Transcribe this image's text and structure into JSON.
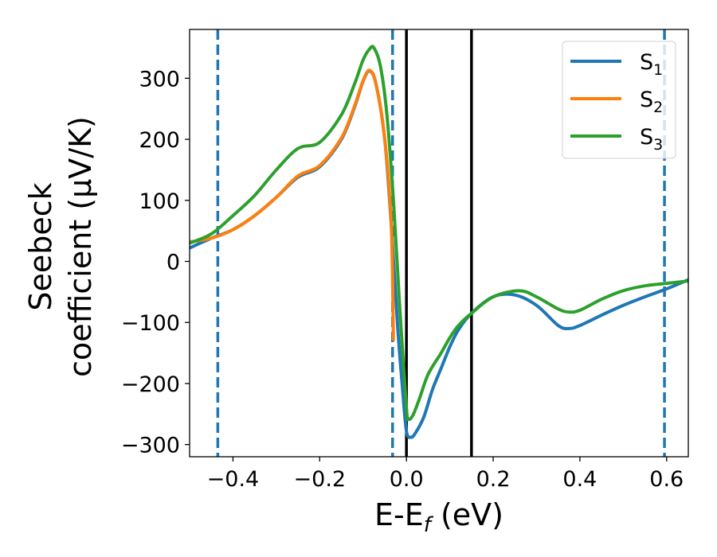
{
  "chart_data": {
    "type": "line",
    "xlabel": "E-E",
    "xlabel_sub": "f",
    "xlabel_unit": " (eV)",
    "ylabel_line1": "Seebeck",
    "ylabel_line2": "coefficient  (μV/K)",
    "xlim": [
      -0.5,
      0.65
    ],
    "ylim": [
      -320,
      380
    ],
    "grid": false,
    "legend_position": "top-right",
    "x_ticks": [
      {
        "value": -0.4,
        "label": "−0.4"
      },
      {
        "value": -0.2,
        "label": "−0.2"
      },
      {
        "value": 0.0,
        "label": "0.0"
      },
      {
        "value": 0.2,
        "label": "0.2"
      },
      {
        "value": 0.4,
        "label": "0.4"
      },
      {
        "value": 0.6,
        "label": "0.6"
      }
    ],
    "y_ticks": [
      {
        "value": 300,
        "label": "300"
      },
      {
        "value": 200,
        "label": "200"
      },
      {
        "value": 100,
        "label": "100"
      },
      {
        "value": 0,
        "label": "0"
      },
      {
        "value": -100,
        "label": "−100"
      },
      {
        "value": -200,
        "label": "−200"
      },
      {
        "value": -300,
        "label": "−300"
      }
    ],
    "vlines": [
      {
        "x": -0.435,
        "style": "dashed",
        "color": "#1f77b4"
      },
      {
        "x": -0.032,
        "style": "dashed",
        "color": "#1f77b4"
      },
      {
        "x": 0.595,
        "style": "dashed",
        "color": "#1f77b4"
      },
      {
        "x": 0.0,
        "style": "solid",
        "color": "#000000"
      },
      {
        "x": 0.15,
        "style": "solid",
        "color": "#000000"
      }
    ],
    "series": [
      {
        "name": "S",
        "sub": "1",
        "color": "#1f77b4",
        "x": [
          -0.5,
          -0.45,
          -0.4,
          -0.35,
          -0.3,
          -0.25,
          -0.2,
          -0.15,
          -0.12,
          -0.1,
          -0.085,
          -0.07,
          -0.05,
          -0.035,
          -0.02,
          -0.01,
          0.0,
          0.01,
          0.02,
          0.04,
          0.06,
          0.08,
          0.1,
          0.12,
          0.15,
          0.2,
          0.25,
          0.3,
          0.35,
          0.375,
          0.4,
          0.45,
          0.5,
          0.55,
          0.6,
          0.65
        ],
        "y": [
          22,
          38,
          52,
          75,
          105,
          138,
          155,
          200,
          252,
          295,
          312,
          290,
          200,
          60,
          -110,
          -200,
          -278,
          -288,
          -282,
          -255,
          -210,
          -175,
          -140,
          -112,
          -85,
          -58,
          -55,
          -72,
          -105,
          -110,
          -105,
          -88,
          -72,
          -58,
          -45,
          -30
        ]
      },
      {
        "name": "S",
        "sub": "2",
        "color": "#ff7f0e",
        "x": [
          -0.5,
          -0.45,
          -0.4,
          -0.35,
          -0.3,
          -0.25,
          -0.2,
          -0.15,
          -0.12,
          -0.1,
          -0.085,
          -0.07,
          -0.05,
          -0.035,
          -0.03
        ],
        "y": [
          32,
          38,
          52,
          75,
          105,
          140,
          157,
          202,
          254,
          296,
          313,
          290,
          200,
          60,
          -130
        ]
      },
      {
        "name": "S",
        "sub": "3",
        "color": "#2ca02c",
        "x": [
          -0.5,
          -0.45,
          -0.4,
          -0.35,
          -0.3,
          -0.25,
          -0.2,
          -0.15,
          -0.12,
          -0.1,
          -0.085,
          -0.075,
          -0.06,
          -0.045,
          -0.03,
          -0.015,
          0.0,
          0.005,
          0.015,
          0.03,
          0.05,
          0.08,
          0.1,
          0.12,
          0.15,
          0.2,
          0.26,
          0.3,
          0.35,
          0.375,
          0.4,
          0.45,
          0.5,
          0.55,
          0.6,
          0.65
        ],
        "y": [
          30,
          45,
          75,
          108,
          150,
          185,
          195,
          240,
          290,
          330,
          348,
          350,
          320,
          240,
          100,
          -80,
          -240,
          -258,
          -252,
          -225,
          -185,
          -150,
          -125,
          -105,
          -85,
          -58,
          -48,
          -58,
          -78,
          -83,
          -80,
          -62,
          -48,
          -40,
          -36,
          -32
        ]
      }
    ]
  }
}
